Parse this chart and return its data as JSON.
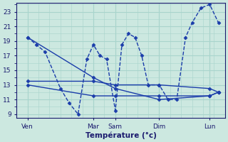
{
  "background_color": "#cce8e0",
  "grid_color": "#a8d4cc",
  "line_color": "#1a3caa",
  "xlabel": "Température (°c)",
  "yticks": [
    9,
    11,
    13,
    15,
    17,
    19,
    21,
    23
  ],
  "ylim": [
    8.5,
    24.2
  ],
  "xlim": [
    0,
    9.5
  ],
  "xtick_positions": [
    0.5,
    3.5,
    4.5,
    6.5,
    8.8
  ],
  "xtick_labels": [
    "Ven",
    "Mar",
    "Sam",
    "Dim",
    "Lun"
  ],
  "vline_positions": [
    0.5,
    3.5,
    4.5,
    6.5,
    8.8
  ],
  "series": [
    {
      "x": [
        0.5,
        0.9,
        1.3,
        2.0,
        2.4,
        2.8,
        3.2,
        3.5,
        3.8,
        4.1,
        4.5,
        4.8,
        5.1,
        5.4,
        5.7,
        6.0,
        6.5,
        6.9,
        7.3,
        7.7,
        8.0,
        8.4,
        8.8,
        9.2
      ],
      "y": [
        19.5,
        18.5,
        17.5,
        12.5,
        10.5,
        9.0,
        16.5,
        18.5,
        17.0,
        16.5,
        9.5,
        18.5,
        20.0,
        19.5,
        17.0,
        13.0,
        13.0,
        11.0,
        11.0,
        19.5,
        21.5,
        23.5,
        24.0,
        21.5
      ]
    },
    {
      "x": [
        0.5,
        3.5,
        4.5,
        6.5,
        8.8,
        9.2
      ],
      "y": [
        13.5,
        13.5,
        13.0,
        13.0,
        12.5,
        12.0
      ]
    },
    {
      "x": [
        0.5,
        3.5,
        4.5,
        6.5,
        8.8,
        9.2
      ],
      "y": [
        13.0,
        11.5,
        11.5,
        11.5,
        11.5,
        12.0
      ]
    },
    {
      "x": [
        0.5,
        3.5,
        4.5,
        6.5,
        8.8,
        9.2
      ],
      "y": [
        19.5,
        14.0,
        12.5,
        11.0,
        11.5,
        12.0
      ]
    }
  ]
}
